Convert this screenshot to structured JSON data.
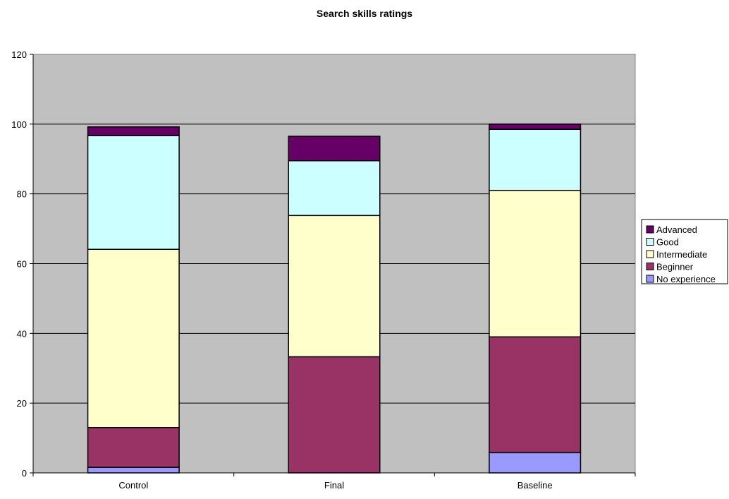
{
  "chart_data": {
    "type": "bar",
    "stacked": true,
    "title": "Search skills ratings",
    "xlabel": "",
    "ylabel": "",
    "ylim": [
      0,
      120
    ],
    "yticks": [
      0,
      20,
      40,
      60,
      80,
      100,
      120
    ],
    "grid": true,
    "legend_position": "right",
    "categories": [
      "Control",
      "Final",
      "Baseline"
    ],
    "series": [
      {
        "name": "No experience",
        "color": "#9999ff",
        "values": [
          1.6,
          0,
          5.8
        ]
      },
      {
        "name": "Beginner",
        "color": "#993366",
        "values": [
          11.4,
          33.3,
          33.2
        ]
      },
      {
        "name": "Intermediate",
        "color": "#ffffcc",
        "values": [
          51.1,
          40.5,
          42.0
        ]
      },
      {
        "name": "Good",
        "color": "#ccffff",
        "values": [
          32.6,
          15.7,
          17.5
        ]
      },
      {
        "name": "Advanced",
        "color": "#660066",
        "values": [
          2.5,
          7.0,
          1.5
        ]
      }
    ],
    "plot_background": "#c0c0c0"
  }
}
